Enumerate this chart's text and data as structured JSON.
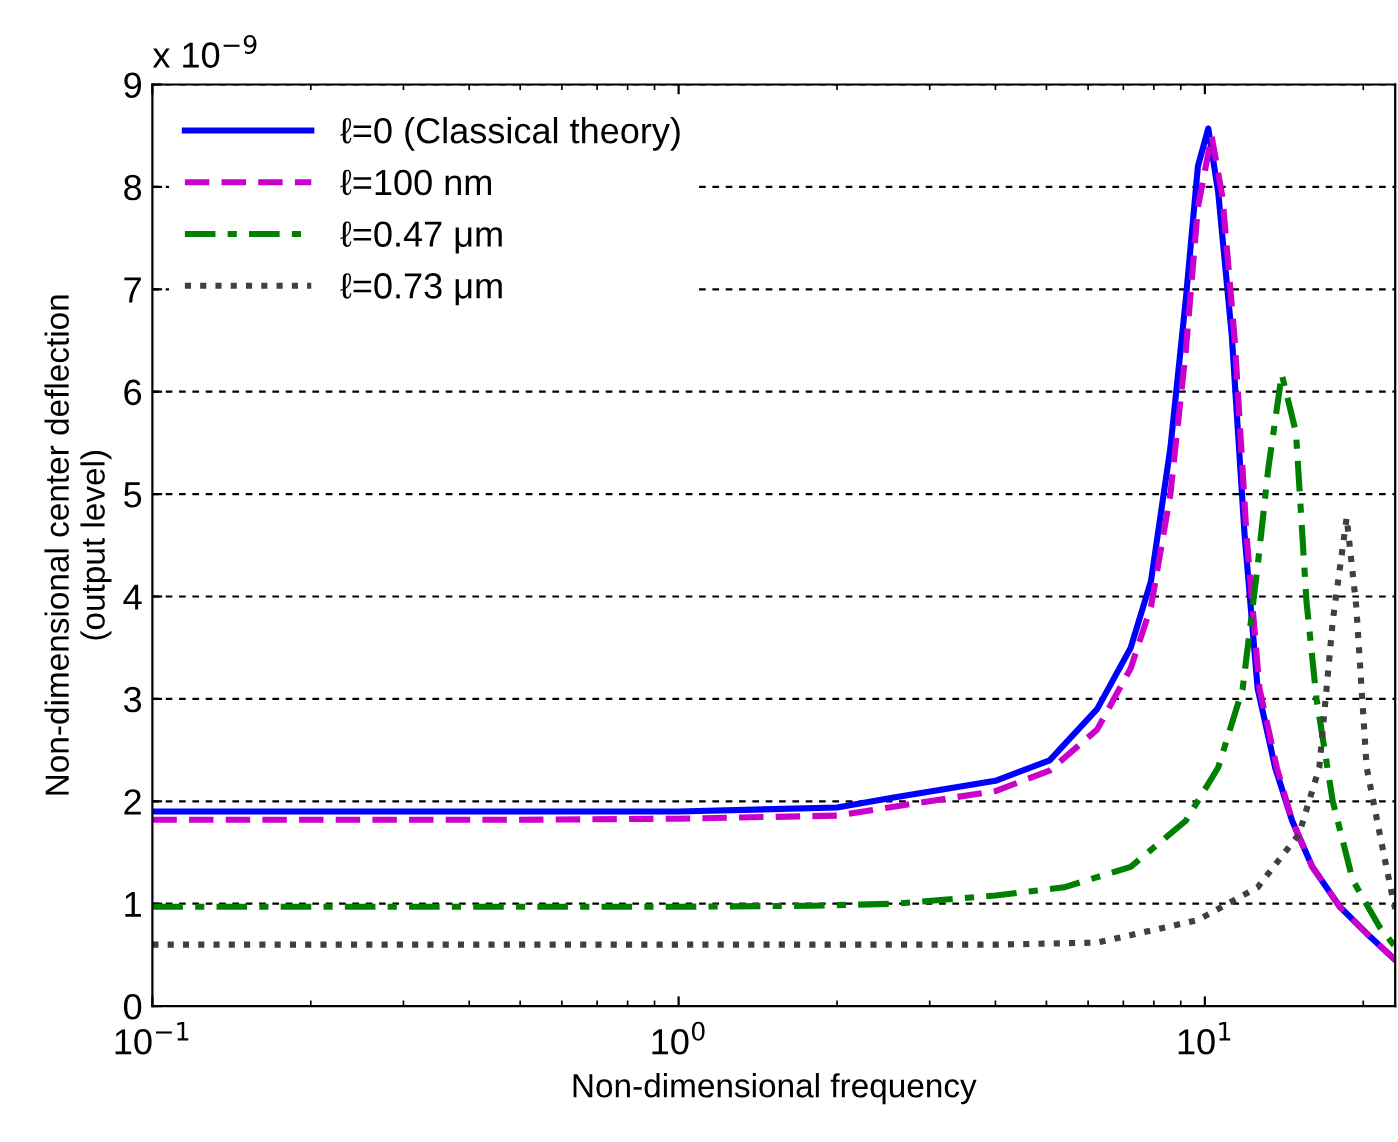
{
  "chart_data": {
    "type": "line",
    "xlabel": "Non-dimensional frequency",
    "ylabel": "Non-dimensional center deflection\n(output level)",
    "annotations": [
      "x 10$^{−9}$"
    ],
    "log": "x",
    "xlim": [
      0.1,
      23
    ],
    "xticks": [
      {
        "value": 0.1,
        "label": "10$^{−1}$"
      },
      {
        "value": 1,
        "label": "10$^{0}$"
      },
      {
        "value": 10,
        "label": "10$^{1}$"
      }
    ],
    "ylim": [
      0,
      9
    ],
    "yticks": [
      0,
      1,
      2,
      3,
      4,
      5,
      6,
      7,
      8,
      9
    ],
    "grid": "y",
    "legend": "top left",
    "series": [
      {
        "name": "ℓ=0 (Classical theory)",
        "color": "#0000ff",
        "line_style": "solid",
        "x": [
          0.1,
          0.5,
          1,
          2,
          2.58,
          4.0,
          5.07,
          6.24,
          7.23,
          7.9,
          8.6,
          9.2,
          9.7,
          10.15,
          10.6,
          11.25,
          11.9,
          12.6,
          13.6,
          14.65,
          16.0,
          18.05,
          20.3,
          23
        ],
        "values": [
          1.9,
          1.9,
          1.9,
          1.94,
          2.04,
          2.2,
          2.4,
          2.9,
          3.5,
          4.15,
          5.45,
          6.9,
          8.2,
          8.57,
          7.95,
          6.55,
          4.6,
          3.1,
          2.33,
          1.81,
          1.36,
          0.97,
          0.71,
          0.45
        ]
      },
      {
        "name": "ℓ=100 nm",
        "color": "#cc00cc",
        "line_style": "dashed",
        "x": [
          0.1,
          0.5,
          1,
          2,
          2.58,
          4.0,
          5.07,
          6.24,
          7.23,
          7.9,
          8.6,
          9.2,
          9.7,
          10.3,
          10.8,
          11.4,
          12.0,
          12.7,
          13.7,
          14.65,
          16.0,
          18.05,
          20.3,
          23
        ],
        "values": [
          1.82,
          1.82,
          1.83,
          1.86,
          1.95,
          2.1,
          2.3,
          2.7,
          3.3,
          3.9,
          5.0,
          6.4,
          7.8,
          8.5,
          7.9,
          6.5,
          4.6,
          3.1,
          2.33,
          1.81,
          1.36,
          0.97,
          0.71,
          0.45
        ]
      },
      {
        "name": "ℓ=0.47 μm",
        "color": "#008000",
        "line_style": "dashdot",
        "x": [
          0.1,
          0.5,
          1,
          1.8,
          2.58,
          4.0,
          5.4,
          7.23,
          9.2,
          10.6,
          11.8,
          12.6,
          13.2,
          14.0,
          14.9,
          15.6,
          16.3,
          17.5,
          19.1,
          21.5,
          23
        ],
        "values": [
          0.97,
          0.97,
          0.97,
          0.98,
          1.0,
          1.08,
          1.16,
          1.36,
          1.81,
          2.33,
          3.1,
          4.3,
          5.25,
          6.17,
          5.6,
          3.95,
          3.0,
          2.0,
          1.23,
          0.77,
          0.58
        ]
      },
      {
        "name": "ℓ=0.73 μm",
        "color": "#404040",
        "line_style": "dotted",
        "x": [
          0.1,
          0.5,
          1,
          2,
          4,
          6.24,
          9.7,
          12.6,
          15.1,
          16.5,
          17.5,
          18.6,
          19.4,
          20.3,
          21.5,
          22.8,
          23
        ],
        "values": [
          0.6,
          0.6,
          0.6,
          0.6,
          0.6,
          0.62,
          0.84,
          1.16,
          1.68,
          2.33,
          3.76,
          4.77,
          3.9,
          2.33,
          1.68,
          1.03,
          0.95
        ]
      }
    ]
  }
}
